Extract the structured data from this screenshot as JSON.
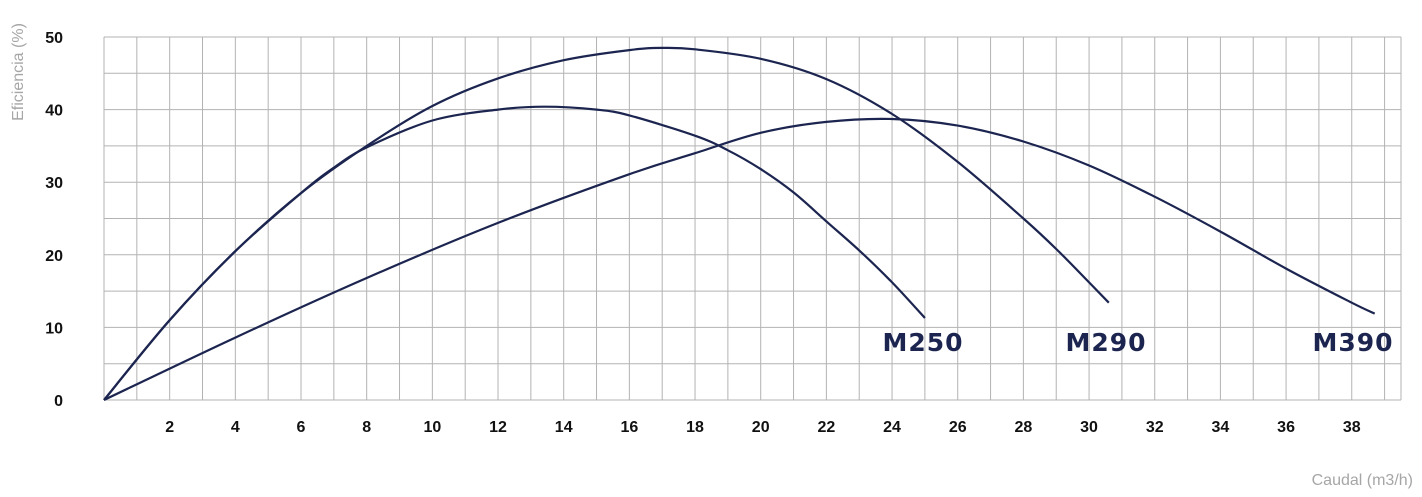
{
  "chart_data": {
    "type": "line",
    "xlabel": "Caudal (m3/h)",
    "ylabel": "Eficiencia (%)",
    "xlim": [
      0,
      39.5
    ],
    "ylim": [
      0,
      50
    ],
    "x_ticks": [
      "2",
      "4",
      "6",
      "8",
      "10",
      "12",
      "14",
      "16",
      "18",
      "20",
      "22",
      "24",
      "26",
      "28",
      "30",
      "32",
      "34",
      "36",
      "38"
    ],
    "y_ticks": [
      "0",
      "10",
      "20",
      "30",
      "40",
      "50"
    ],
    "grid": true,
    "line_color": "#1c2550",
    "series": [
      {
        "name": "M250",
        "x": [
          0,
          2,
          4,
          6,
          7,
          8,
          10,
          12,
          13.4,
          15,
          16,
          18,
          19,
          20,
          21,
          22,
          23,
          24,
          25
        ],
        "y": [
          0,
          11,
          20.5,
          28.5,
          32,
          34.8,
          38.5,
          40,
          40.4,
          40,
          39.2,
          36.4,
          34.4,
          31.8,
          28.6,
          24.6,
          20.6,
          16.2,
          11.3
        ]
      },
      {
        "name": "M290",
        "x": [
          0,
          2,
          4,
          6,
          8,
          10,
          12,
          14,
          16,
          17,
          18,
          20,
          22,
          24,
          26,
          28,
          29,
          30,
          30.6
        ],
        "y": [
          0,
          11,
          20.5,
          28.5,
          35,
          40.5,
          44.3,
          46.8,
          48.2,
          48.5,
          48.3,
          47,
          44.2,
          39.4,
          32.8,
          25,
          20.8,
          16.2,
          13.4
        ]
      },
      {
        "name": "M390",
        "x": [
          0,
          4,
          8,
          12,
          16,
          18,
          20,
          22,
          24,
          26,
          28,
          30,
          32,
          34,
          36,
          38,
          38.7
        ],
        "y": [
          0,
          8.6,
          16.8,
          24.4,
          31.1,
          34,
          36.8,
          38.3,
          38.7,
          37.8,
          35.6,
          32.3,
          28,
          23.2,
          18.1,
          13.4,
          11.9
        ]
      }
    ]
  }
}
